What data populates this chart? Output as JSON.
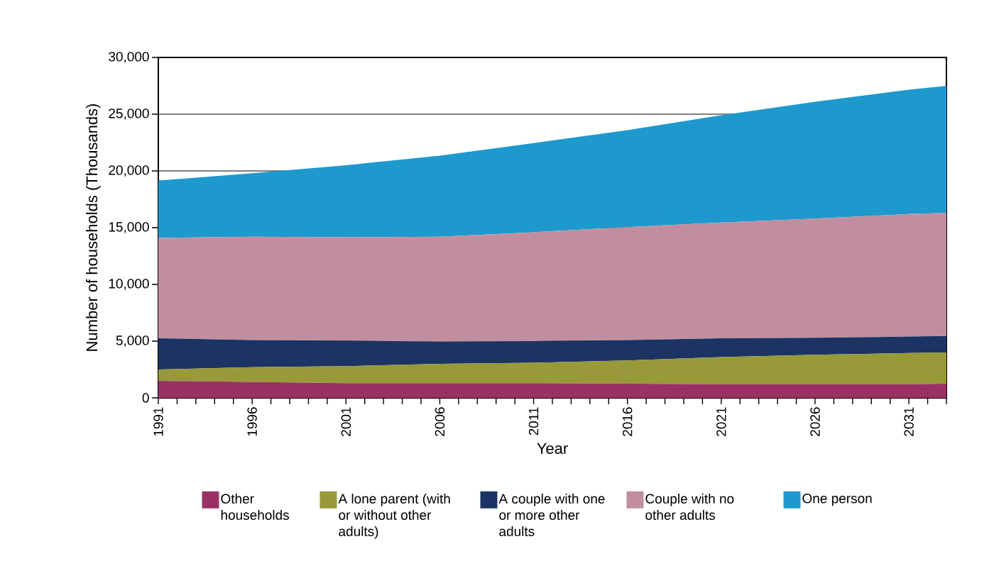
{
  "chart_data": {
    "type": "area",
    "stacked": true,
    "xlabel": "Year",
    "ylabel": "Number of households (Thousands)",
    "x": [
      1991,
      1996,
      2001,
      2006,
      2011,
      2016,
      2021,
      2026,
      2031,
      2033
    ],
    "series": [
      {
        "name": "Other households",
        "color": "#9a3165",
        "values": [
          1500,
          1400,
          1300,
          1300,
          1300,
          1250,
          1200,
          1200,
          1200,
          1250
        ]
      },
      {
        "name": "A lone parent (with or without other adults)",
        "color": "#989938",
        "values": [
          1000,
          1300,
          1500,
          1700,
          1800,
          2050,
          2400,
          2600,
          2750,
          2750
        ]
      },
      {
        "name": "A couple with one or more other adults",
        "color": "#1b3463",
        "values": [
          2750,
          2400,
          2250,
          1950,
          1900,
          1800,
          1650,
          1500,
          1450,
          1450
        ]
      },
      {
        "name": "Couple with no other adults",
        "color": "#c18ea0",
        "values": [
          8850,
          9100,
          9100,
          9250,
          9600,
          9950,
          10200,
          10500,
          10800,
          10850
        ]
      },
      {
        "name": "One person",
        "color": "#1e99cd",
        "values": [
          5050,
          5600,
          6350,
          7150,
          7850,
          8550,
          9450,
          10300,
          10950,
          11200
        ]
      }
    ],
    "xlim": [
      1991,
      2033
    ],
    "xticks": [
      1991,
      {
        "value": 1992,
        "label": null
      },
      {
        "value": 1993,
        "label": null
      },
      {
        "value": 1994,
        "label": null
      },
      {
        "value": 1995,
        "label": null
      },
      1996,
      {
        "value": 1997,
        "label": null
      },
      {
        "value": 1998,
        "label": null
      },
      {
        "value": 1999,
        "label": null
      },
      {
        "value": 2000,
        "label": null
      },
      2001,
      {
        "value": 2002,
        "label": null
      },
      {
        "value": 2003,
        "label": null
      },
      {
        "value": 2004,
        "label": null
      },
      {
        "value": 2005,
        "label": null
      },
      2006,
      {
        "value": 2007,
        "label": null
      },
      {
        "value": 2008,
        "label": null
      },
      {
        "value": 2009,
        "label": null
      },
      {
        "value": 2010,
        "label": null
      },
      2011,
      {
        "value": 2012,
        "label": null
      },
      {
        "value": 2013,
        "label": null
      },
      {
        "value": 2014,
        "label": null
      },
      {
        "value": 2015,
        "label": null
      },
      2016,
      {
        "value": 2017,
        "label": null
      },
      {
        "value": 2018,
        "label": null
      },
      {
        "value": 2019,
        "label": null
      },
      {
        "value": 2020,
        "label": null
      },
      2021,
      {
        "value": 2022,
        "label": null
      },
      {
        "value": 2023,
        "label": null
      },
      {
        "value": 2024,
        "label": null
      },
      {
        "value": 2025,
        "label": null
      },
      2026,
      {
        "value": 2027,
        "label": null
      },
      {
        "value": 2028,
        "label": null
      },
      {
        "value": 2029,
        "label": null
      },
      {
        "value": 2030,
        "label": null
      },
      2031,
      {
        "value": 2032,
        "label": null
      },
      {
        "value": 2033,
        "label": null
      }
    ],
    "ylim": [
      0,
      30000
    ],
    "yticks": [
      0,
      {
        "value": 5000,
        "label": "5,000"
      },
      {
        "value": 10000,
        "label": "10,000"
      },
      {
        "value": 15000,
        "label": "15,000"
      },
      {
        "value": 20000,
        "label": "20,000"
      },
      {
        "value": 25000,
        "label": "25,000"
      },
      {
        "value": 30000,
        "label": "30,000"
      }
    ],
    "grid": "y",
    "legend": "bottom"
  }
}
